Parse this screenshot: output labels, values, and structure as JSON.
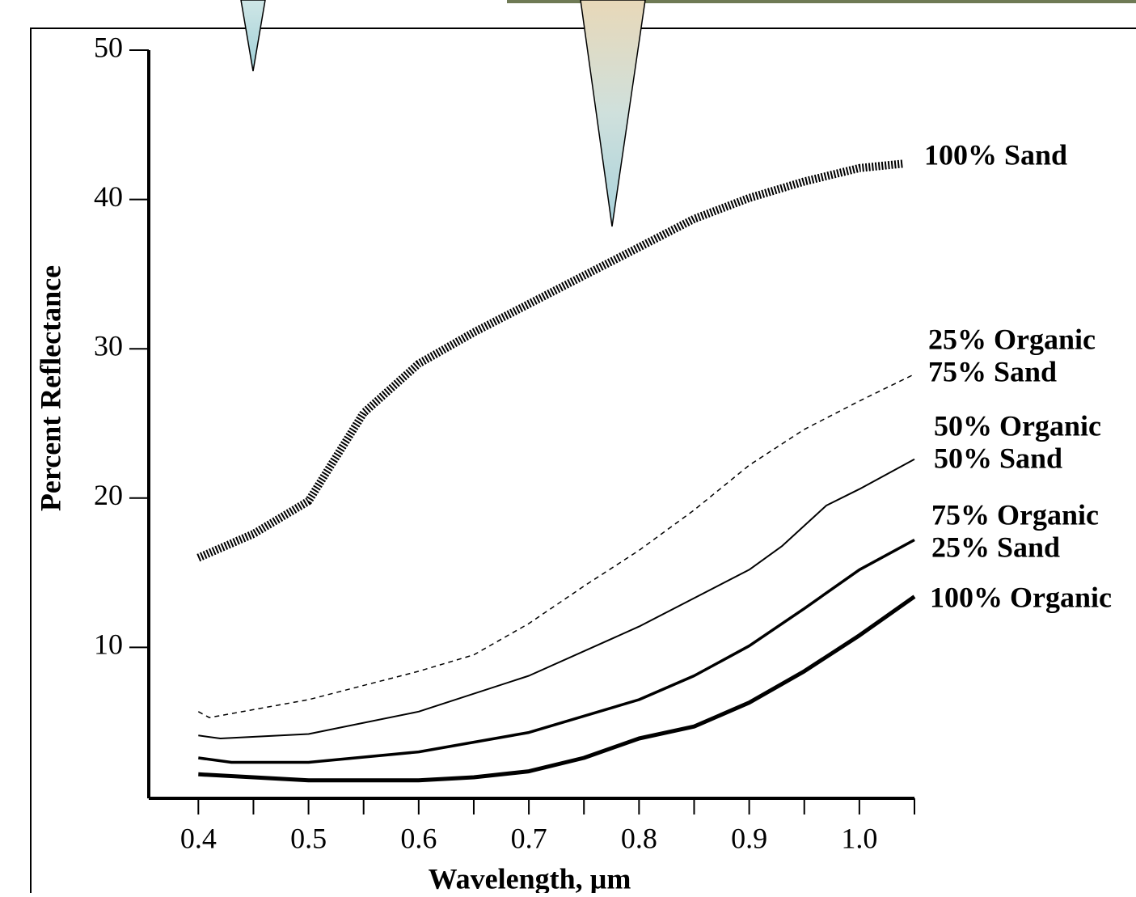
{
  "chart_data": {
    "type": "line",
    "y_label": "Percent Reflectance",
    "x_label": "Wavelength, µm",
    "xlim": [
      0.355,
      1.05
    ],
    "ylim": [
      0,
      50
    ],
    "xticks": [
      0.4,
      0.5,
      0.6,
      0.7,
      0.8,
      0.9,
      {
        "value": 1,
        "label": "1.0"
      }
    ],
    "xminor_ticks": [
      0.45,
      0.55,
      0.65,
      0.75,
      0.85,
      0.95,
      1.05
    ],
    "yticks": [
      10,
      20,
      30,
      40,
      50
    ],
    "series": [
      {
        "label": [
          "100% Sand"
        ],
        "color": "#000",
        "style": "hatched",
        "width": 10,
        "x": [
          0.4,
          0.45,
          0.5,
          0.55,
          0.6,
          0.65,
          0.7,
          0.75,
          0.8,
          0.85,
          0.9,
          0.95,
          1.0,
          1.04
        ],
        "values": [
          16.0,
          17.6,
          19.8,
          25.7,
          29.0,
          31.1,
          33.0,
          34.9,
          36.8,
          38.7,
          40.1,
          41.2,
          42.1,
          42.4
        ]
      },
      {
        "label": [
          "25% Organic",
          "75% Sand"
        ],
        "color": "#000",
        "style": "dashed",
        "width": 1.5,
        "x": [
          0.4,
          0.41,
          0.5,
          0.6,
          0.65,
          0.7,
          0.75,
          0.8,
          0.85,
          0.9,
          0.95,
          1.0,
          1.05
        ],
        "values": [
          5.7,
          5.3,
          6.5,
          8.4,
          9.5,
          11.6,
          14.1,
          16.5,
          19.2,
          22.2,
          24.6,
          26.5,
          28.3
        ]
      },
      {
        "label": [
          "50% Organic",
          "50% Sand"
        ],
        "color": "#000",
        "style": "solid",
        "width": 2,
        "x": [
          0.4,
          0.42,
          0.5,
          0.6,
          0.7,
          0.8,
          0.85,
          0.9,
          0.93,
          0.97,
          1.0,
          1.05
        ],
        "values": [
          4.1,
          3.9,
          4.2,
          5.7,
          8.1,
          11.4,
          13.3,
          15.2,
          16.8,
          19.5,
          20.6,
          22.6
        ]
      },
      {
        "label": [
          "75% Organic",
          "25% Sand"
        ],
        "color": "#000",
        "style": "solid",
        "width": 3.5,
        "x": [
          0.4,
          0.43,
          0.5,
          0.6,
          0.7,
          0.8,
          0.85,
          0.9,
          0.95,
          1.0,
          1.05
        ],
        "values": [
          2.6,
          2.3,
          2.3,
          3.0,
          4.3,
          6.5,
          8.1,
          10.1,
          12.6,
          15.2,
          17.2
        ]
      },
      {
        "label": [
          "100% Organic"
        ],
        "color": "#000",
        "style": "solid",
        "width": 5,
        "x": [
          0.4,
          0.5,
          0.6,
          0.65,
          0.7,
          0.75,
          0.8,
          0.85,
          0.9,
          0.95,
          1.0,
          1.05
        ],
        "values": [
          1.5,
          1.1,
          1.1,
          1.3,
          1.7,
          2.6,
          3.9,
          4.7,
          6.3,
          8.4,
          10.8,
          13.4
        ]
      }
    ]
  }
}
